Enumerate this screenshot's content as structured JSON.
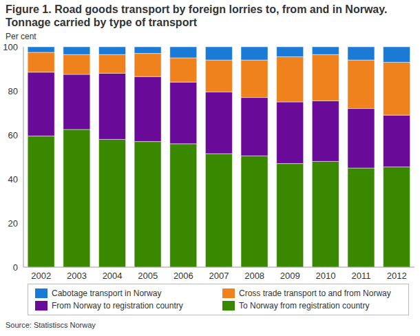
{
  "chart_data": {
    "type": "bar",
    "title": "Figure 1. Road goods transport by foreign lorries to, from and in Norway. Tonnage carried by type of transport",
    "y_label": "Per cent",
    "source": "Source: Statistiscs Norway",
    "stacked": true,
    "grid": false,
    "legend": "bottom",
    "categories": [
      "2002",
      "2003",
      "2004",
      "2005",
      "2006",
      "2007",
      "2008",
      "2009",
      "2010",
      "2011",
      "2012"
    ],
    "ylim": [
      0,
      100
    ],
    "yticks": [
      0,
      20,
      40,
      60,
      80,
      100
    ],
    "series": [
      {
        "name": "To Norway from registration country",
        "color": "#3a8700",
        "values": [
          59.5,
          62.5,
          58,
          57,
          56,
          51.5,
          50.5,
          47,
          48,
          45,
          45.5
        ]
      },
      {
        "name": "From Norway to registration country",
        "color": "#6a0a99",
        "values": [
          29,
          25,
          30,
          29.5,
          28,
          28,
          26.5,
          28,
          27.5,
          27,
          23.5
        ]
      },
      {
        "name": "Cross trade transport to and from Norway",
        "color": "#f0821e",
        "values": [
          9,
          9,
          8.5,
          10.5,
          11,
          14.5,
          17,
          20.5,
          21,
          22,
          24
        ]
      },
      {
        "name": "Cabotage transport in Norway",
        "color": "#1b7ad6",
        "values": [
          2.5,
          3.5,
          3.5,
          3,
          5,
          6,
          6,
          4.5,
          3.5,
          6,
          7
        ]
      }
    ]
  }
}
